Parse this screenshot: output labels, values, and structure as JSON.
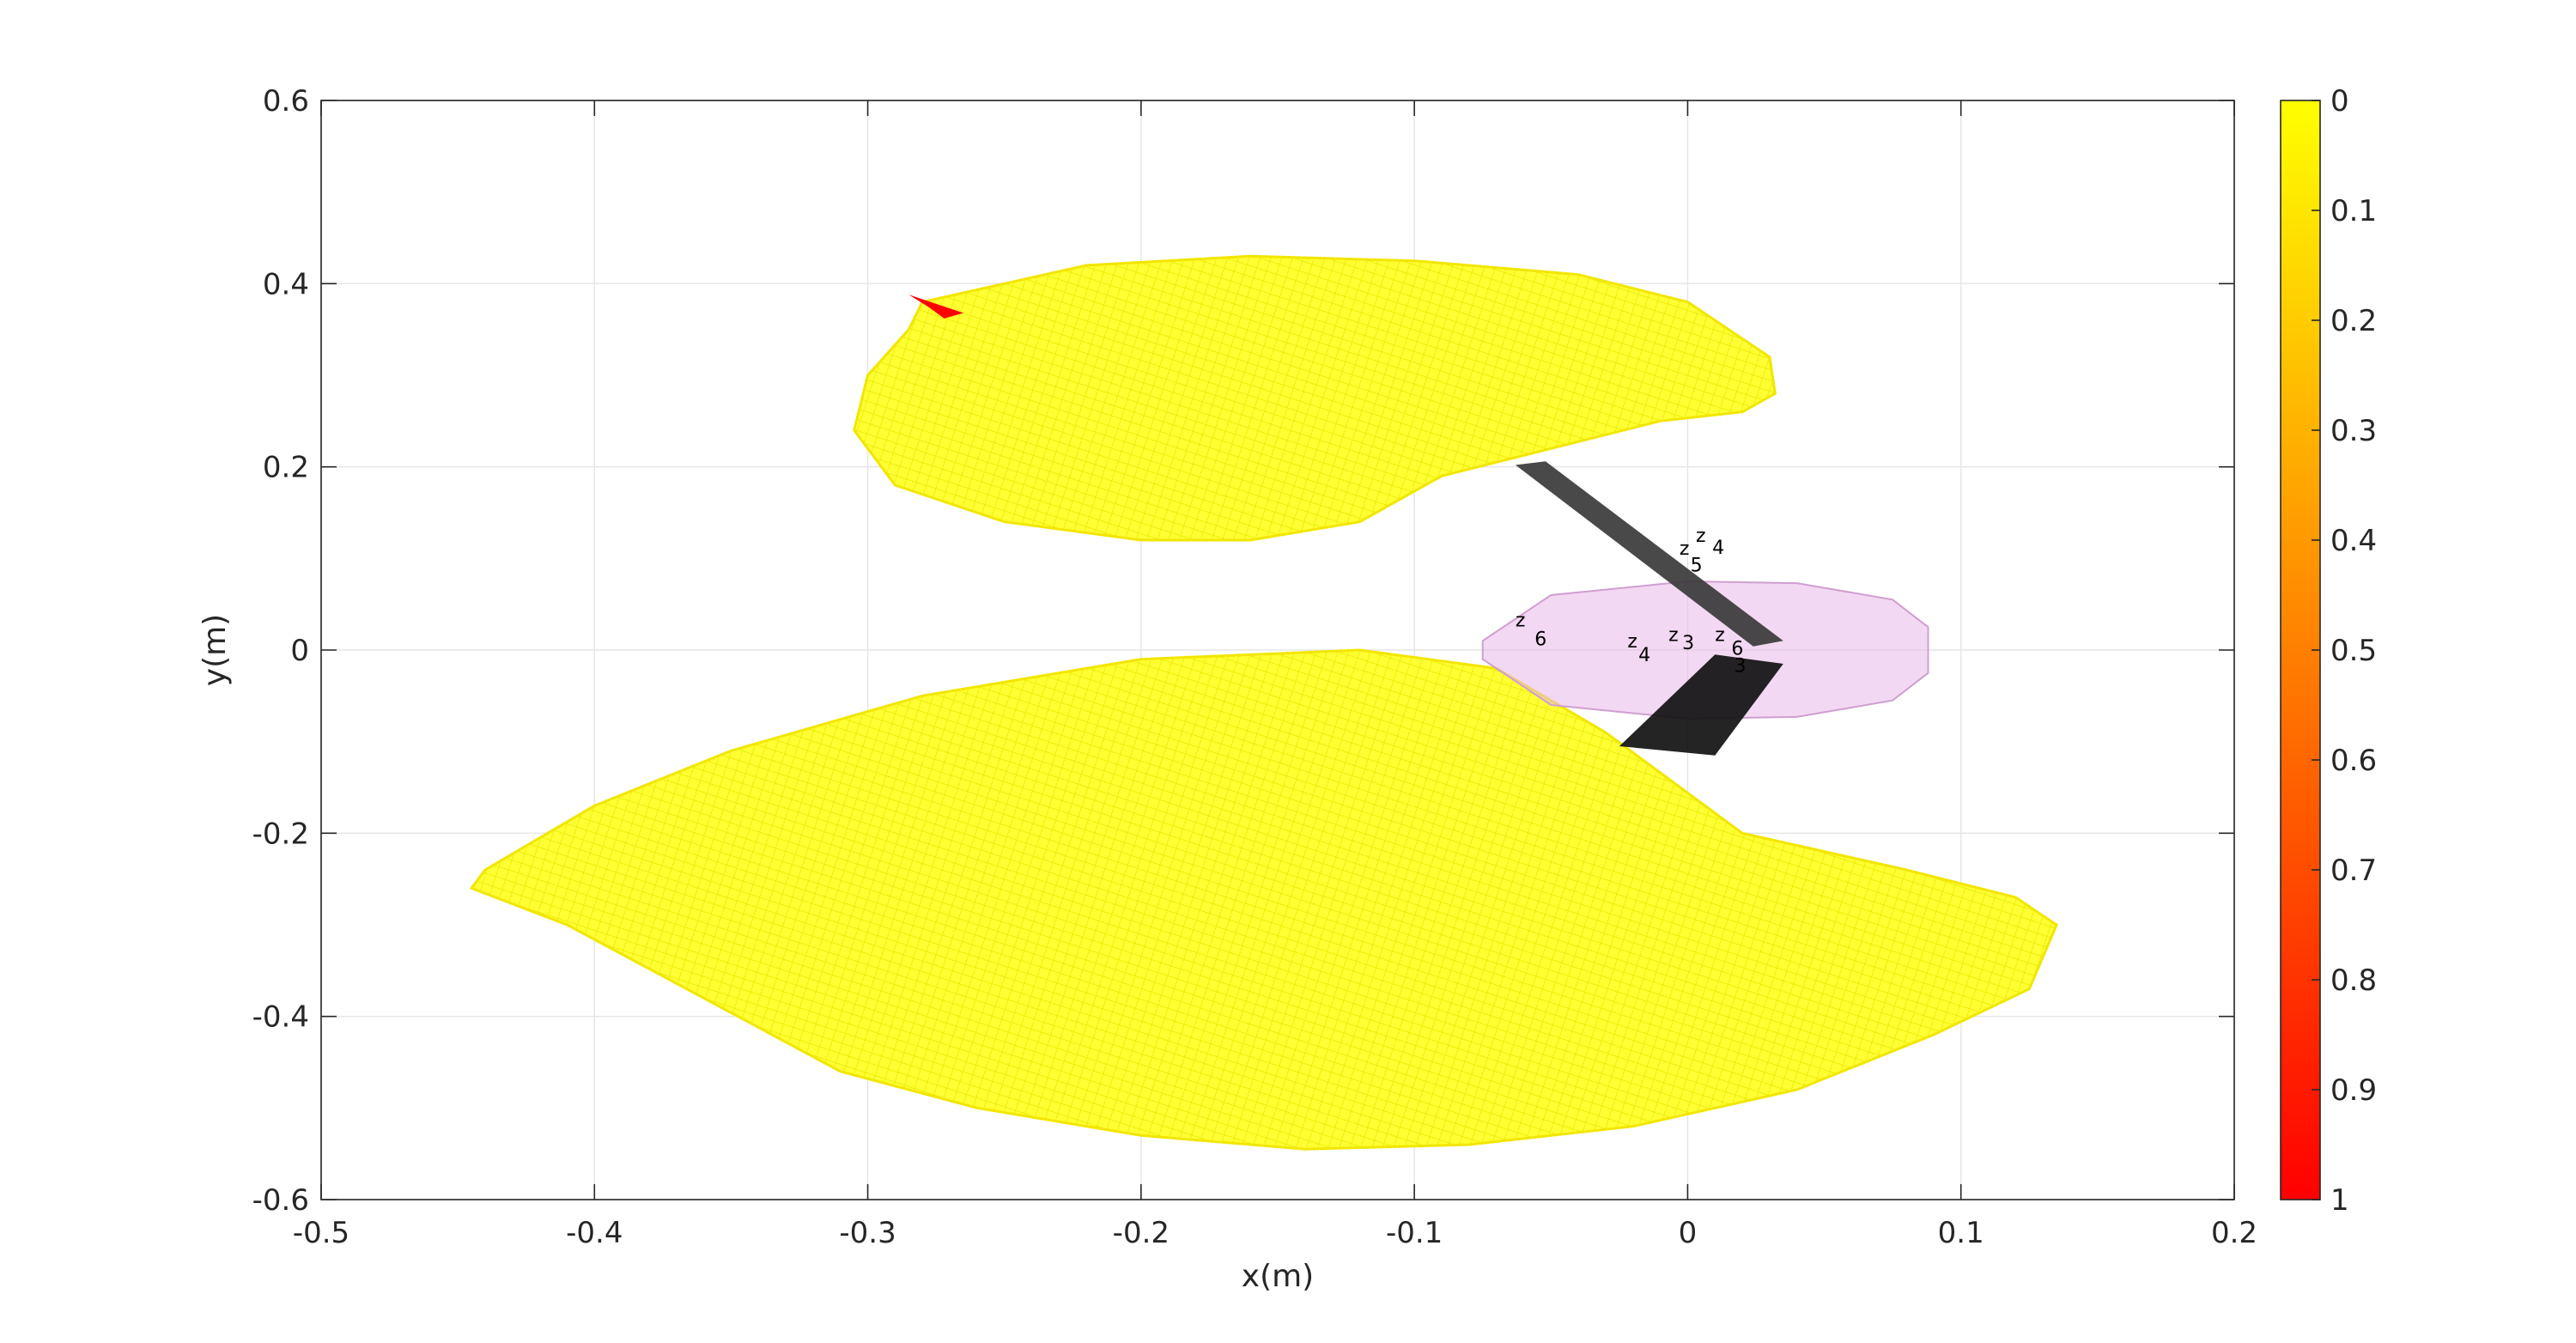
{
  "chart_data": {
    "type": "surface",
    "title": "",
    "xlabel": "x(m)",
    "ylabel": "y(m)",
    "xlim": [
      -0.5,
      0.2
    ],
    "ylim": [
      -0.6,
      0.6
    ],
    "x_ticks": [
      -0.5,
      -0.4,
      -0.3,
      -0.2,
      -0.1,
      0,
      0.1,
      0.2
    ],
    "x_tick_labels": [
      "-0.5",
      "-0.4",
      "-0.3",
      "-0.2",
      "-0.1",
      "0",
      "0.1",
      "0.2"
    ],
    "y_ticks": [
      0.6,
      0.4,
      0.2,
      0,
      -0.2,
      -0.4,
      -0.6
    ],
    "y_tick_labels": [
      "0.6",
      "0.4",
      "0.2",
      "0",
      "-0.2",
      "-0.4",
      "-0.6"
    ],
    "grid": true,
    "colorbar": {
      "colormap": "autumn (reversed)",
      "range": [
        0,
        1
      ],
      "ticks": [
        0,
        0.1,
        0.2,
        0.3,
        0.4,
        0.5,
        0.6,
        0.7,
        0.8,
        0.9,
        1
      ],
      "tick_labels": [
        "0",
        "0.1",
        "0.2",
        "0.3",
        "0.4",
        "0.5",
        "0.6",
        "0.7",
        "0.8",
        "0.9",
        "1"
      ],
      "color_top": "#ffff00",
      "color_bottom": "#ff0000"
    },
    "series": [
      {
        "kind": "upper-wing-surface",
        "color": "#ffff00",
        "x": [
          -0.28,
          -0.22,
          -0.16,
          -0.1,
          -0.04,
          0,
          0.03,
          0.032,
          0.02,
          -0.01,
          -0.05,
          -0.09,
          -0.12,
          -0.16,
          -0.2,
          -0.25,
          -0.29,
          -0.305,
          -0.3,
          -0.285
        ],
        "y": [
          0.38,
          0.42,
          0.43,
          0.425,
          0.41,
          0.38,
          0.32,
          0.28,
          0.26,
          0.25,
          0.22,
          0.19,
          0.14,
          0.12,
          0.12,
          0.14,
          0.18,
          0.24,
          0.3,
          0.35
        ]
      },
      {
        "kind": "lower-wing-surface",
        "color": "#ffff00",
        "x": [
          -0.44,
          -0.4,
          -0.35,
          -0.28,
          -0.2,
          -0.12,
          -0.07,
          -0.03,
          0.02,
          0.08,
          0.12,
          0.135,
          0.125,
          0.09,
          0.04,
          -0.02,
          -0.08,
          -0.14,
          -0.2,
          -0.26,
          -0.31,
          -0.36,
          -0.41,
          -0.445
        ],
        "y": [
          -0.24,
          -0.17,
          -0.11,
          -0.05,
          -0.01,
          0,
          -0.02,
          -0.09,
          -0.2,
          -0.24,
          -0.27,
          -0.3,
          -0.37,
          -0.42,
          -0.48,
          -0.52,
          -0.54,
          -0.545,
          -0.53,
          -0.5,
          -0.46,
          -0.38,
          -0.3,
          -0.26
        ]
      },
      {
        "kind": "fuselage",
        "color": "#e9b8ea",
        "x": [
          -0.075,
          -0.05,
          0,
          0.04,
          0.075,
          0.088,
          0.088,
          0.075,
          0.04,
          0,
          -0.05,
          -0.075
        ],
        "y": [
          0.01,
          0.06,
          0.075,
          0.073,
          0.055,
          0.025,
          -0.025,
          -0.055,
          -0.073,
          -0.075,
          -0.06,
          -0.01
        ]
      },
      {
        "kind": "upper-wing-arm",
        "color": "#3a3a3a",
        "x": [
          -0.063,
          -0.052,
          0.035,
          0.024
        ],
        "y": [
          0.202,
          0.206,
          0.01,
          0.004
        ]
      },
      {
        "kind": "lower-wing-arm",
        "color": "#111111",
        "x": [
          0.01,
          0.035,
          0.01,
          -0.025
        ],
        "y": [
          -0.005,
          -0.015,
          -0.115,
          -0.105
        ]
      },
      {
        "kind": "marker-arrow",
        "color": "#ff0000",
        "x": [
          -0.285,
          -0.265,
          -0.272,
          -0.278
        ],
        "y": [
          0.388,
          0.368,
          0.362,
          0.375
        ]
      }
    ],
    "frame_labels": [
      {
        "text": "z",
        "x": 0.003,
        "y": 0.118
      },
      {
        "text": "4",
        "x": 0.009,
        "y": 0.105
      },
      {
        "text": "z",
        "x": -0.003,
        "y": 0.104
      },
      {
        "text": "5",
        "x": 0.001,
        "y": 0.086
      },
      {
        "text": "z",
        "x": -0.063,
        "y": 0.026
      },
      {
        "text": "6",
        "x": -0.056,
        "y": 0.005
      },
      {
        "text": "z",
        "x": -0.022,
        "y": 0.003
      },
      {
        "text": "4",
        "x": -0.018,
        "y": -0.012
      },
      {
        "text": "z",
        "x": -0.007,
        "y": 0.01
      },
      {
        "text": "3",
        "x": -0.002,
        "y": 0.001
      },
      {
        "text": "z",
        "x": 0.01,
        "y": 0.01
      },
      {
        "text": "6",
        "x": 0.016,
        "y": -0.005
      },
      {
        "text": "3",
        "x": 0.017,
        "y": -0.024
      }
    ]
  }
}
